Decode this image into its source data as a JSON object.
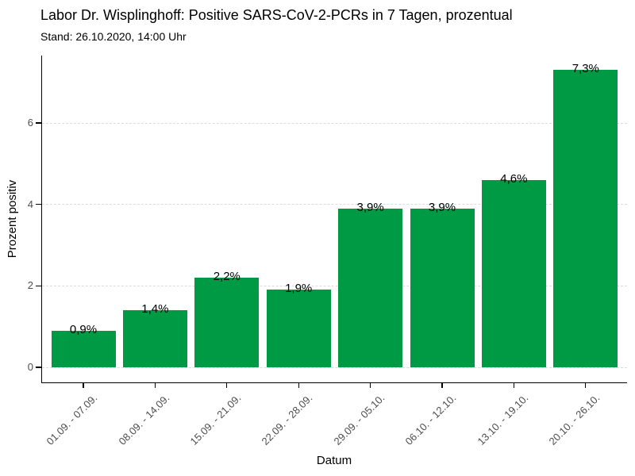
{
  "chart": {
    "title": "Labor Dr. Wisplinghoff: Positive SARS-CoV-2-PCRs in 7 Tagen, prozentual",
    "subtitle": "Stand: 26.10.2020, 14:00 Uhr",
    "xlabel": "Datum",
    "ylabel": "Prozent positiv"
  },
  "chart_data": {
    "type": "bar",
    "title": "Labor Dr. Wisplinghoff: Positive SARS-CoV-2-PCRs in 7 Tagen, prozentual",
    "subtitle": "Stand: 26.10.2020, 14:00 Uhr",
    "xlabel": "Datum",
    "ylabel": "Prozent positiv",
    "categories": [
      "01.09. - 07.09.",
      "08.09. - 14.09.",
      "15.09. - 21.09.",
      "22.09. - 28.09.",
      "29.09. - 05.10.",
      "06.10. - 12.10.",
      "13.10. - 19.10.",
      "20.10. - 26.10."
    ],
    "values": [
      0.9,
      1.4,
      2.2,
      1.9,
      3.9,
      3.9,
      4.6,
      7.3
    ],
    "bar_labels": [
      "0,9%",
      "1,4%",
      "2,2%",
      "1,9%",
      "3,9%",
      "3,9%",
      "4,6%",
      "7,3%"
    ],
    "yticks": [
      0,
      2,
      4,
      6
    ],
    "ytick_labels": [
      "0",
      "2",
      "4",
      "6"
    ],
    "ylim": [
      0,
      7.67
    ],
    "grid": "horizontal-major-dashed",
    "legend": "none",
    "colors": {
      "bar": "#009944",
      "grid": "#dcdcdc",
      "axis": "#000000",
      "tick_label": "#4d4d4d",
      "text": "#000000",
      "background": "#ffffff"
    }
  }
}
